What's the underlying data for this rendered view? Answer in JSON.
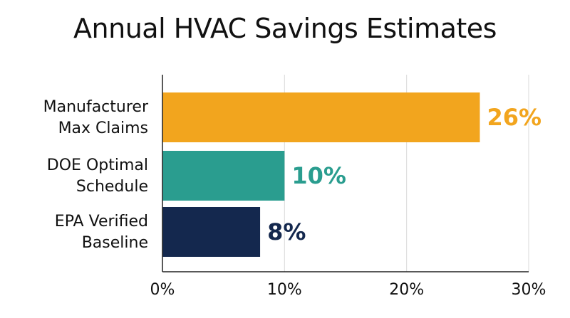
{
  "chart_data": {
    "type": "bar",
    "orientation": "horizontal",
    "title": "Annual HVAC Savings Estimates",
    "categories": [
      [
        "Manufacturer",
        "Max Claims"
      ],
      [
        "DOE Optimal",
        "Schedule"
      ],
      [
        "EPA Verified",
        "Baseline"
      ]
    ],
    "values": [
      26,
      10,
      8
    ],
    "data_labels": [
      "26%",
      "10%",
      "8%"
    ],
    "colors": [
      "#F2A51E",
      "#2A9D8F",
      "#14284E"
    ],
    "xlim": [
      0,
      30
    ],
    "xticks": [
      0,
      10,
      20,
      30
    ],
    "xtick_labels": [
      "0%",
      "10%",
      "20%",
      "30%"
    ],
    "xlabel": "",
    "ylabel": "",
    "grid": "vertical"
  }
}
